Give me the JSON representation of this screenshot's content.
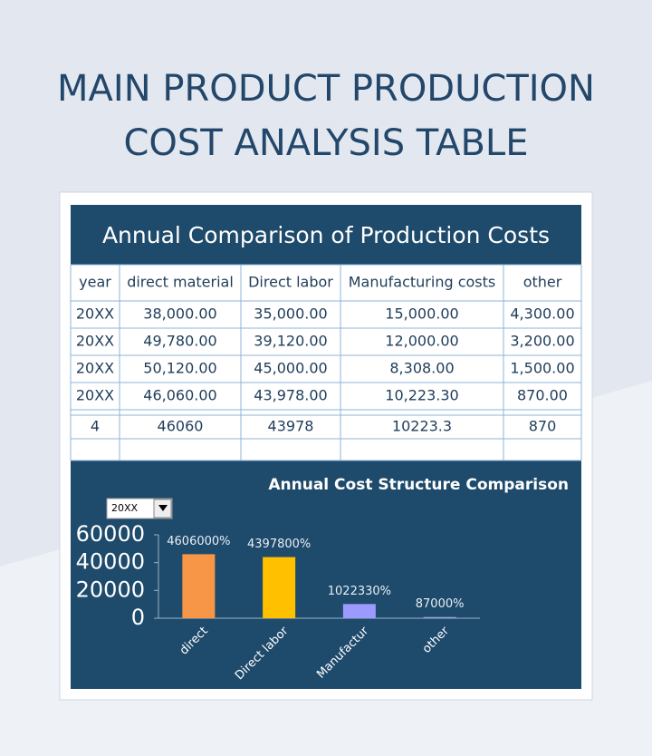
{
  "header": {
    "title": [
      "MAIN PRODUCT PRODUCTION",
      "COST ANALYSIS TABLE"
    ]
  },
  "table": {
    "title": "Annual Comparison of Production Costs",
    "columns": [
      "year",
      "direct material",
      "Direct labor",
      "Manufacturing costs",
      "other"
    ],
    "rows": [
      [
        "20XX",
        "38,000.00",
        "35,000.00",
        "15,000.00",
        "4,300.00"
      ],
      [
        "20XX",
        "49,780.00",
        "39,120.00",
        "12,000.00",
        "3,200.00"
      ],
      [
        "20XX",
        "50,120.00",
        "45,000.00",
        "8,308.00",
        "1,500.00"
      ],
      [
        "20XX",
        "46,060.00",
        "43,978.00",
        "10,223.30",
        "870.00"
      ]
    ],
    "summary": [
      "4",
      "46060",
      "43978",
      "10223.3",
      "870"
    ]
  },
  "chart_data": {
    "type": "bar",
    "title": "Annual Cost Structure Comparison",
    "selector": "20XX",
    "categories": [
      "direct",
      "Direct labor",
      "Manufactur",
      "other"
    ],
    "values": [
      46060,
      43978,
      10223.3,
      870
    ],
    "value_labels": [
      "4606000%",
      "4397800%",
      "1022330%",
      "87000%"
    ],
    "colors": [
      "#f79646",
      "#ffc000",
      "#9b9bff",
      "#8fa6dc"
    ],
    "ylim": [
      0,
      60000
    ],
    "yticks": [
      0,
      20000,
      40000,
      60000
    ]
  }
}
